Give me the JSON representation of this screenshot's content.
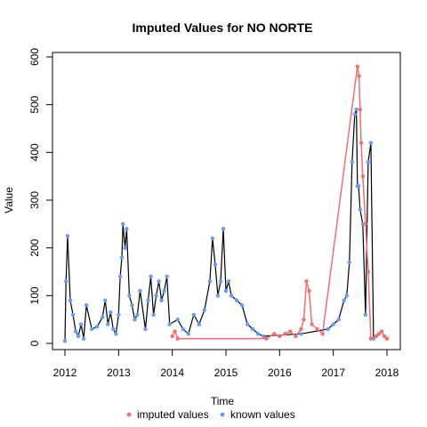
{
  "chart_data": {
    "type": "line",
    "title": "Imputed Values for  NO NORTE",
    "xlabel": "Time",
    "ylabel": "Value",
    "xlim": [
      2012.0,
      2018.0
    ],
    "ylim": [
      0,
      600
    ],
    "x_ticks": [
      2012,
      2013,
      2014,
      2015,
      2016,
      2017,
      2018
    ],
    "y_ticks": [
      0,
      100,
      200,
      300,
      400,
      500,
      600
    ],
    "grid": false,
    "legend_position": "bottom",
    "series": [
      {
        "name": "known values",
        "color": "#619CFF",
        "x": [
          2012.0,
          2012.02,
          2012.05,
          2012.1,
          2012.15,
          2012.2,
          2012.25,
          2012.3,
          2012.35,
          2012.4,
          2012.5,
          2012.6,
          2012.7,
          2012.75,
          2012.8,
          2012.85,
          2012.9,
          2012.95,
          2013.0,
          2013.03,
          2013.06,
          2013.08,
          2013.12,
          2013.15,
          2013.2,
          2013.25,
          2013.3,
          2013.35,
          2013.4,
          2013.5,
          2013.55,
          2013.6,
          2013.65,
          2013.7,
          2013.75,
          2013.8,
          2013.85,
          2013.9,
          2013.95,
          2014.1,
          2014.2,
          2014.3,
          2014.4,
          2014.5,
          2014.6,
          2014.7,
          2014.75,
          2014.8,
          2014.85,
          2014.9,
          2014.95,
          2015.0,
          2015.05,
          2015.1,
          2015.2,
          2015.3,
          2015.4,
          2015.5,
          2015.6,
          2015.7,
          2016.4,
          2016.9,
          2017.0,
          2017.1,
          2017.2,
          2017.25,
          2017.3,
          2017.35,
          2017.4,
          2017.43,
          2017.45,
          2017.47,
          2017.5,
          2017.55,
          2017.6,
          2017.65,
          2017.7,
          2017.75
        ],
        "y": [
          5,
          130,
          225,
          90,
          60,
          25,
          15,
          40,
          10,
          80,
          30,
          35,
          55,
          90,
          40,
          65,
          30,
          20,
          60,
          140,
          180,
          250,
          200,
          240,
          100,
          80,
          50,
          60,
          110,
          30,
          90,
          140,
          60,
          100,
          130,
          90,
          110,
          140,
          40,
          50,
          30,
          20,
          60,
          40,
          70,
          130,
          220,
          165,
          100,
          130,
          240,
          110,
          130,
          100,
          90,
          80,
          40,
          30,
          20,
          15,
          20,
          30,
          40,
          50,
          90,
          100,
          170,
          380,
          480,
          490,
          330,
          330,
          280,
          250,
          60,
          380,
          420,
          10
        ]
      },
      {
        "name": "imputed values",
        "color": "#F07070",
        "x": [
          2014.0,
          2014.05,
          2014.1,
          2015.75,
          2015.9,
          2016.0,
          2016.1,
          2016.2,
          2016.3,
          2016.4,
          2016.45,
          2016.5,
          2016.55,
          2016.6,
          2016.7,
          2016.8,
          2017.45,
          2017.48,
          2017.5,
          2017.52,
          2017.55,
          2017.6,
          2017.65,
          2017.7,
          2017.8,
          2017.85,
          2017.9,
          2017.95,
          2018.0
        ],
        "y": [
          15,
          25,
          10,
          10,
          20,
          15,
          20,
          25,
          15,
          30,
          50,
          130,
          110,
          40,
          30,
          20,
          580,
          560,
          490,
          420,
          350,
          250,
          150,
          10,
          15,
          20,
          25,
          15,
          10
        ]
      }
    ]
  }
}
